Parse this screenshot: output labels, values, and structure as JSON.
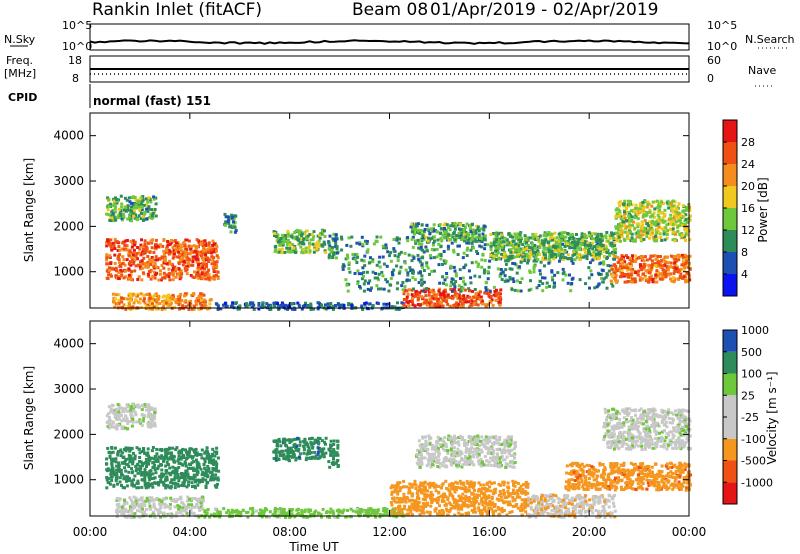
{
  "header": {
    "station": "Rankin Inlet (fitACF)",
    "beam": "Beam 08",
    "date_range": "01/Apr/2019 - 02/Apr/2019"
  },
  "strips": {
    "nsky_label": "N.Sky",
    "nsky_ticks": [
      "10^5",
      "10^0"
    ],
    "nsearch_label": "N.Search",
    "nsearch_ticks": [
      "10^5",
      "10^0"
    ],
    "freq_label": "Freq.",
    "freq_unit": "[MHz]",
    "freq_ticks": [
      "18",
      "8"
    ],
    "nave_label": "Nave",
    "nave_ticks": [
      "60",
      "0"
    ],
    "cpid_label": "CPID",
    "cpid_value": "normal (fast) 151"
  },
  "colors": {
    "power_scale": [
      "#0a14f0",
      "#1e50b4",
      "#2d8c5a",
      "#6ec83c",
      "#f0c81e",
      "#f58c1e",
      "#f05014",
      "#e61414"
    ],
    "velocity_scale": [
      "#e61414",
      "#f05014",
      "#f5961e",
      "#c8c8c8",
      "#c8c8c8",
      "#6ec83c",
      "#2d8c5a",
      "#1e50b4"
    ]
  },
  "chart_data": [
    {
      "type": "heatmap",
      "parameter": "power",
      "ylabel": "Slant Range [km]",
      "xlabel": "Time UT",
      "x_ticks": [
        "00:00",
        "04:00",
        "08:00",
        "12:00",
        "16:00",
        "20:00",
        "00:00"
      ],
      "y_ticks": [
        1000,
        2000,
        3000,
        4000
      ],
      "xlim_hours": [
        0,
        24
      ],
      "ylim_km": [
        200,
        4500
      ],
      "colorbar_label": "Power [dB]",
      "colorbar_ticks": [
        "4",
        "8",
        "12",
        "16",
        "20",
        "24",
        "28"
      ],
      "colorbar_range": [
        0,
        32
      ],
      "regions": [
        {
          "t": [
            0.6,
            5.1
          ],
          "r": [
            850,
            1750
          ],
          "value": 25
        },
        {
          "t": [
            0.6,
            2.6
          ],
          "r": [
            2150,
            2700
          ],
          "value": 12
        },
        {
          "t": [
            5.3,
            5.8
          ],
          "r": [
            1900,
            2300
          ],
          "value": 9
        },
        {
          "t": [
            7.3,
            9.4
          ],
          "r": [
            1450,
            1950
          ],
          "value": 13
        },
        {
          "t": [
            9.5,
            9.9
          ],
          "r": [
            1300,
            1900
          ],
          "value": 11
        },
        {
          "t": [
            0.8,
            4.8
          ],
          "r": [
            200,
            550
          ],
          "value": 22
        },
        {
          "t": [
            5.0,
            12.5
          ],
          "r": [
            200,
            350
          ],
          "value": 7
        },
        {
          "t": [
            12.5,
            16.4
          ],
          "r": [
            250,
            650
          ],
          "value": 26
        },
        {
          "t": [
            10.0,
            21.0
          ],
          "r": [
            600,
            1800
          ],
          "value": 10
        },
        {
          "t": [
            12.8,
            15.8
          ],
          "r": [
            1700,
            2100
          ],
          "value": 12
        },
        {
          "t": [
            16.0,
            21.0
          ],
          "r": [
            1300,
            1900
          ],
          "value": 13
        },
        {
          "t": [
            20.8,
            24.0
          ],
          "r": [
            800,
            1400
          ],
          "value": 24
        },
        {
          "t": [
            21.0,
            24.0
          ],
          "r": [
            1700,
            2600
          ],
          "value": 16
        }
      ]
    },
    {
      "type": "heatmap",
      "parameter": "velocity",
      "ylabel": "Slant Range [km]",
      "xlabel": "Time UT",
      "x_ticks": [
        "00:00",
        "04:00",
        "08:00",
        "12:00",
        "16:00",
        "20:00",
        "00:00"
      ],
      "y_ticks": [
        1000,
        2000,
        3000,
        4000
      ],
      "xlim_hours": [
        0,
        24
      ],
      "ylim_km": [
        200,
        4500
      ],
      "colorbar_label": "Velocity [m s⁻¹]",
      "colorbar_ticks": [
        "-1000",
        "-500",
        "-100",
        "-25",
        "25",
        "100",
        "500",
        "1000"
      ],
      "regions": [
        {
          "t": [
            0.6,
            5.1
          ],
          "r": [
            850,
            1750
          ],
          "value": 300
        },
        {
          "t": [
            0.6,
            2.6
          ],
          "r": [
            2150,
            2700
          ],
          "value": 0
        },
        {
          "t": [
            7.3,
            9.4
          ],
          "r": [
            1450,
            1950
          ],
          "value": 350
        },
        {
          "t": [
            9.5,
            9.9
          ],
          "r": [
            1300,
            1900
          ],
          "value": 300
        },
        {
          "t": [
            1.0,
            4.5
          ],
          "r": [
            200,
            650
          ],
          "value": 0
        },
        {
          "t": [
            4.5,
            12.5
          ],
          "r": [
            200,
            400
          ],
          "value": 60
        },
        {
          "t": [
            12.0,
            17.5
          ],
          "r": [
            250,
            1000
          ],
          "value": -300
        },
        {
          "t": [
            13.0,
            17.0
          ],
          "r": [
            1300,
            2000
          ],
          "value": 0
        },
        {
          "t": [
            17.5,
            21.0
          ],
          "r": [
            200,
            700
          ],
          "value": -80
        },
        {
          "t": [
            19.0,
            24.0
          ],
          "r": [
            800,
            1400
          ],
          "value": -350
        },
        {
          "t": [
            20.5,
            24.0
          ],
          "r": [
            1700,
            2600
          ],
          "value": 0
        }
      ]
    }
  ]
}
